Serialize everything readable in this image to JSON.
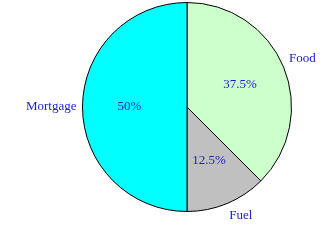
{
  "chart_data": {
    "type": "pie",
    "categories": [
      "Food",
      "Fuel",
      "Mortgage"
    ],
    "values": [
      37.5,
      12.5,
      50
    ],
    "value_labels": [
      "37.5%",
      "12.5%",
      "50%"
    ],
    "colors": [
      "#ccffcc",
      "#c0c0c0",
      "#00ffff"
    ],
    "data_labels": true
  }
}
